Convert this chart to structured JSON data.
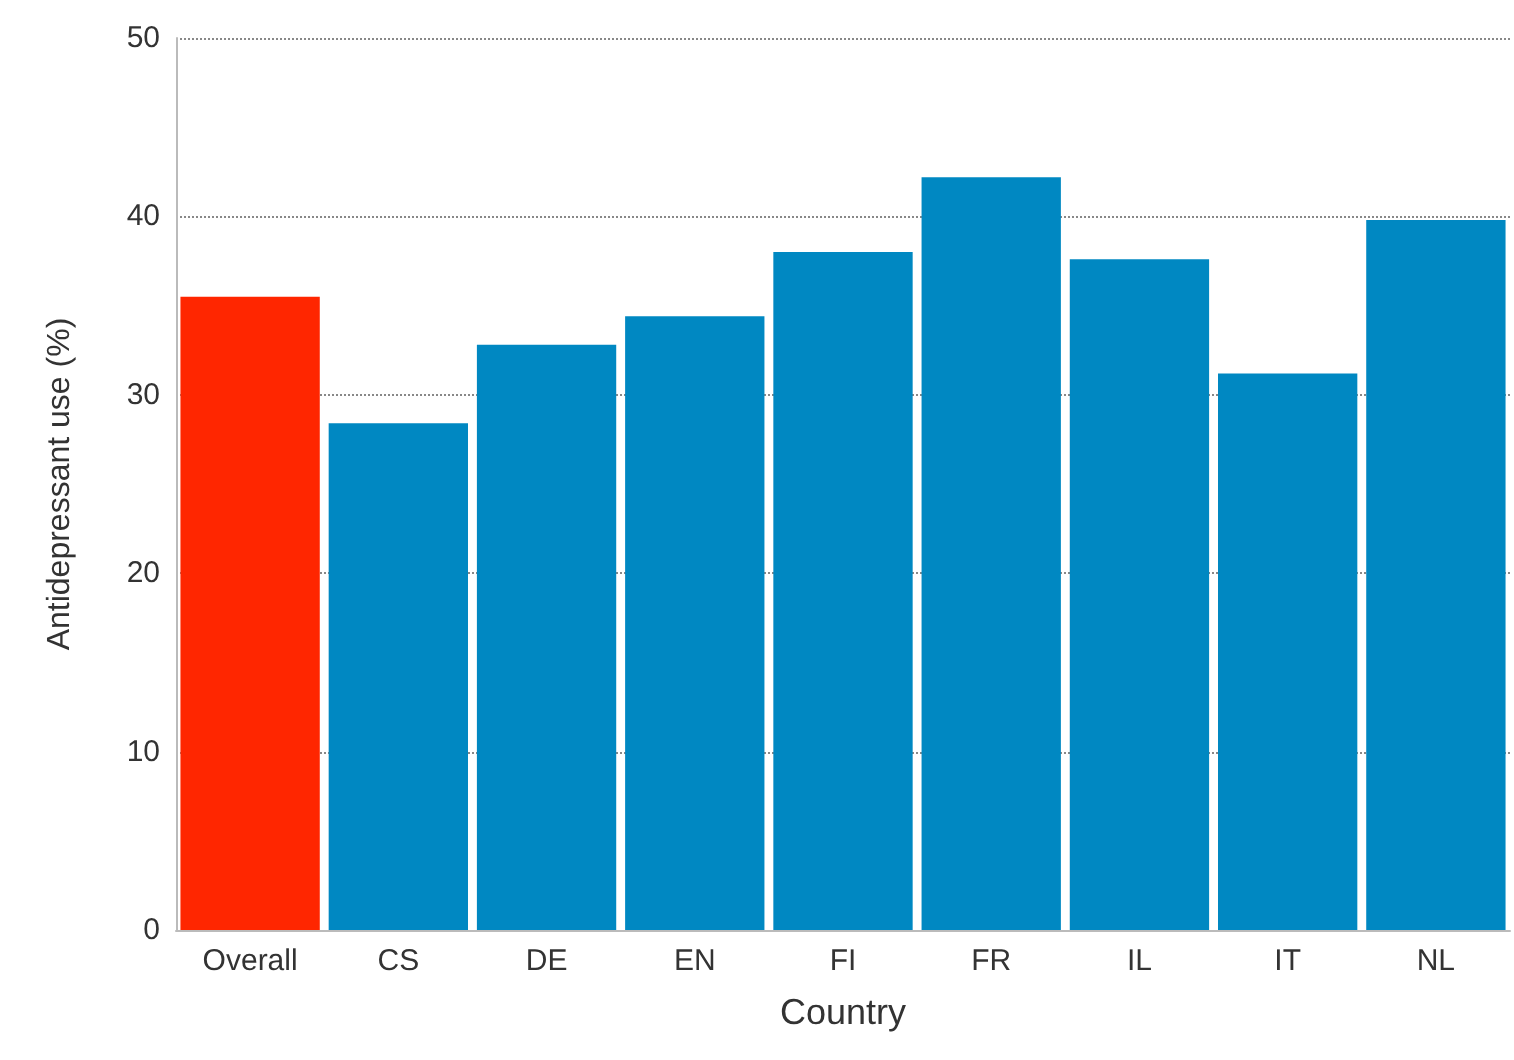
{
  "chart_data": {
    "type": "bar",
    "xlabel": "Country",
    "ylabel": "Antidepressant use (%)",
    "categories": [
      "Overall",
      "CS",
      "DE",
      "EN",
      "FI",
      "FR",
      "IL",
      "IT",
      "NL"
    ],
    "values": [
      35.5,
      28.4,
      32.8,
      34.4,
      38.0,
      42.2,
      37.6,
      31.2,
      39.8
    ],
    "colors": [
      "#ff2600",
      "#0088c2",
      "#0088c2",
      "#0088c2",
      "#0088c2",
      "#0088c2",
      "#0088c2",
      "#0088c2",
      "#0088c2"
    ],
    "ylim": [
      0,
      50
    ],
    "yticks": [
      0,
      10,
      20,
      30,
      40,
      50
    ],
    "grid": "y"
  }
}
